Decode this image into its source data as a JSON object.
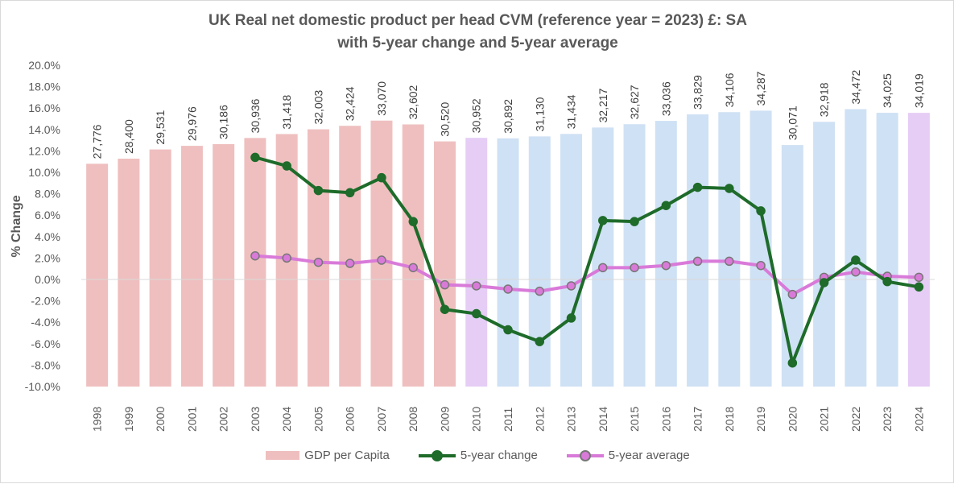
{
  "chart_data": {
    "type": "bar",
    "title": "UK Real net domestic product per head CVM (reference year = 2023) £: SA",
    "subtitle": "with 5-year change and 5-year average",
    "ylabel": "% Change",
    "ylim": [
      -10,
      20
    ],
    "yticks": [
      "-10.0%",
      "-8.0%",
      "-6.0%",
      "-4.0%",
      "-2.0%",
      "0.0%",
      "2.0%",
      "4.0%",
      "6.0%",
      "8.0%",
      "10.0%",
      "12.0%",
      "14.0%",
      "16.0%",
      "18.0%",
      "20.0%"
    ],
    "categories": [
      "1998",
      "1999",
      "2000",
      "2001",
      "2002",
      "2003",
      "2004",
      "2005",
      "2006",
      "2007",
      "2008",
      "2009",
      "2010",
      "2011",
      "2012",
      "2013",
      "2014",
      "2015",
      "2016",
      "2017",
      "2018",
      "2019",
      "2020",
      "2021",
      "2022",
      "2023",
      "2024"
    ],
    "gdp_values": [
      27776,
      28400,
      29531,
      29976,
      30186,
      30936,
      31418,
      32003,
      32424,
      33070,
      32602,
      30520,
      30952,
      30892,
      31130,
      31434,
      32217,
      32627,
      33036,
      33829,
      34106,
      34287,
      30071,
      32918,
      34472,
      34025,
      34019
    ],
    "gdp_labels": [
      "27,776",
      "28,400",
      "29,531",
      "29,976",
      "30,186",
      "30,936",
      "31,418",
      "32,003",
      "32,424",
      "33,070",
      "32,602",
      "30,520",
      "30,952",
      "30,892",
      "31,130",
      "31,434",
      "32,217",
      "32,627",
      "33,036",
      "33,829",
      "34,106",
      "34,287",
      "30,071",
      "32,918",
      "34,472",
      "34,025",
      "34,019"
    ],
    "bar_colors": [
      "#efbfbf",
      "#efbfbf",
      "#efbfbf",
      "#efbfbf",
      "#efbfbf",
      "#efbfbf",
      "#efbfbf",
      "#efbfbf",
      "#efbfbf",
      "#efbfbf",
      "#efbfbf",
      "#efbfbf",
      "#e5cdf5",
      "#cfe1f4",
      "#cfe1f4",
      "#cfe1f4",
      "#cfe1f4",
      "#cfe1f4",
      "#cfe1f4",
      "#cfe1f4",
      "#cfe1f4",
      "#cfe1f4",
      "#cfe1f4",
      "#cfe1f4",
      "#cfe1f4",
      "#cfe1f4",
      "#e5cdf5"
    ],
    "change_5yr": [
      null,
      null,
      null,
      null,
      null,
      11.4,
      10.6,
      8.3,
      8.1,
      9.5,
      5.4,
      -2.8,
      -3.2,
      -4.7,
      -5.8,
      -3.6,
      5.5,
      5.4,
      6.9,
      8.6,
      8.5,
      6.4,
      -7.8,
      -0.3,
      1.8,
      -0.2,
      -0.7
    ],
    "avg_5yr": [
      null,
      null,
      null,
      null,
      null,
      2.2,
      2.0,
      1.6,
      1.5,
      1.8,
      1.1,
      -0.5,
      -0.6,
      -0.9,
      -1.1,
      -0.6,
      1.1,
      1.1,
      1.3,
      1.7,
      1.7,
      1.3,
      -1.4,
      0.2,
      0.7,
      0.3,
      0.2
    ],
    "colors": {
      "change": "#1e6b2a",
      "change_marker": "#1e6b2a",
      "avg": "#d97ad9",
      "avg_marker": "#a0a0a0",
      "gdp_old": "#efbfbf",
      "gdp_new": "#cfe1f4",
      "gdp_highlight": "#e5cdf5"
    },
    "legend": {
      "position": "bottom",
      "items": [
        "GDP per Capita",
        "5-year change",
        "5-year average"
      ]
    },
    "grid": false
  }
}
